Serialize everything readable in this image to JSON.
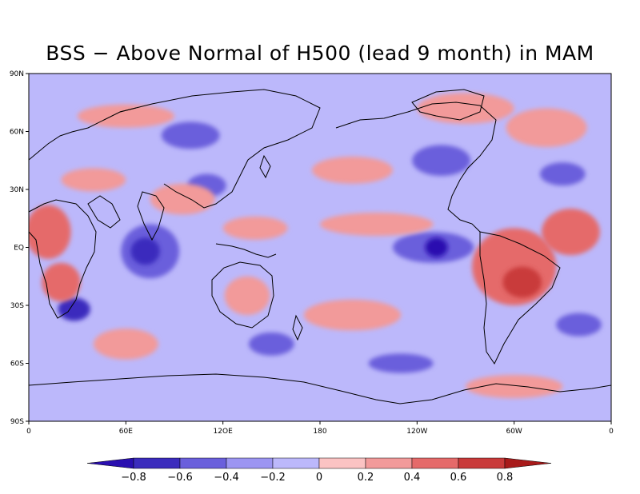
{
  "title": "BSS − Above Normal of H500 (lead 9 month) in MAM",
  "map": {
    "projection": "equirectangular",
    "lon_range": [
      0,
      360
    ],
    "lat_range": [
      -90,
      90
    ],
    "background_level": "-0.2 to 0",
    "lat_ticks": [
      {
        "lat": 90,
        "label": "90N"
      },
      {
        "lat": 60,
        "label": "60N"
      },
      {
        "lat": 30,
        "label": "30N"
      },
      {
        "lat": 0,
        "label": "EQ"
      },
      {
        "lat": -30,
        "label": "30S"
      },
      {
        "lat": -60,
        "label": "60S"
      },
      {
        "lat": -90,
        "label": "90S"
      }
    ],
    "lon_ticks": [
      {
        "lon": 0,
        "label": "0"
      },
      {
        "lon": 60,
        "label": "60E"
      },
      {
        "lon": 120,
        "label": "12OE"
      },
      {
        "lon": 180,
        "label": "180"
      },
      {
        "lon": 240,
        "label": "120W"
      },
      {
        "lon": 300,
        "label": "60W"
      },
      {
        "lon": 360,
        "label": "0"
      }
    ]
  },
  "colorbar": {
    "labels": [
      "−0.8",
      "−0.6",
      "−0.4",
      "−0.2",
      "0",
      "0.2",
      "0.4",
      "0.6",
      "0.8"
    ],
    "colors": [
      "#2a0fb0",
      "#3b2bbd",
      "#6a5fdc",
      "#9c95f2",
      "#bcb8fb",
      "#fbc3c3",
      "#f29a9a",
      "#e56a6a",
      "#c93a3a",
      "#a81a1a"
    ]
  },
  "fields": {
    "positive": [
      {
        "name": "africa-west",
        "lon": 12,
        "lat": 8,
        "rlon": 14,
        "rlat": 14,
        "level": 3
      },
      {
        "name": "africa-south",
        "lon": 20,
        "lat": -18,
        "rlon": 12,
        "rlat": 10,
        "level": 3
      },
      {
        "name": "south-america",
        "lon": 300,
        "lat": -10,
        "rlon": 26,
        "rlat": 20,
        "level": 3
      },
      {
        "name": "amazon-core",
        "lon": 305,
        "lat": -18,
        "rlon": 12,
        "rlat": 8,
        "level": 4
      },
      {
        "name": "atlantic-tropics",
        "lon": 335,
        "lat": 8,
        "rlon": 18,
        "rlat": 12,
        "level": 3
      },
      {
        "name": "north-atlantic",
        "lon": 320,
        "lat": 62,
        "rlon": 25,
        "rlat": 10,
        "level": 2
      },
      {
        "name": "arctic-canada",
        "lon": 270,
        "lat": 72,
        "rlon": 30,
        "rlat": 8,
        "level": 2
      },
      {
        "name": "australia",
        "lon": 135,
        "lat": -25,
        "rlon": 14,
        "rlat": 10,
        "level": 2
      },
      {
        "name": "south-pacific",
        "lon": 200,
        "lat": -35,
        "rlon": 30,
        "rlat": 8,
        "level": 2
      },
      {
        "name": "north-pacific",
        "lon": 200,
        "lat": 40,
        "rlon": 25,
        "rlat": 7,
        "level": 2
      },
      {
        "name": "tropical-pacific-n",
        "lon": 215,
        "lat": 12,
        "rlon": 35,
        "rlat": 6,
        "level": 2
      },
      {
        "name": "southern-ocean-w",
        "lon": 60,
        "lat": -50,
        "rlon": 20,
        "rlat": 8,
        "level": 2
      },
      {
        "name": "antarctic-edge",
        "lon": 300,
        "lat": -72,
        "rlon": 30,
        "rlat": 6,
        "level": 2
      },
      {
        "name": "india-cluster",
        "lon": 95,
        "lat": 25,
        "rlon": 20,
        "rlat": 8,
        "level": 2
      },
      {
        "name": "sea-tropics",
        "lon": 140,
        "lat": 10,
        "rlon": 20,
        "rlat": 6,
        "level": 2
      },
      {
        "name": "eurasia-north",
        "lon": 60,
        "lat": 68,
        "rlon": 30,
        "rlat": 6,
        "level": 2
      },
      {
        "name": "sahara",
        "lon": 40,
        "lat": 35,
        "rlon": 20,
        "rlat": 6,
        "level": 2
      }
    ],
    "negative": [
      {
        "name": "indian-ocean",
        "lon": 75,
        "lat": -2,
        "rlon": 18,
        "rlat": 14,
        "level": 2
      },
      {
        "name": "indian-ocean-core",
        "lon": 72,
        "lat": -2,
        "rlon": 9,
        "rlat": 7,
        "level": 3
      },
      {
        "name": "east-pacific",
        "lon": 250,
        "lat": 0,
        "rlon": 25,
        "rlat": 8,
        "level": 2
      },
      {
        "name": "east-pacific-core",
        "lon": 252,
        "lat": 0,
        "rlon": 7,
        "rlat": 5,
        "level": 4
      },
      {
        "name": "south-africa-tip",
        "lon": 28,
        "lat": -32,
        "rlon": 10,
        "rlat": 6,
        "level": 3
      },
      {
        "name": "siberia",
        "lon": 100,
        "lat": 58,
        "rlon": 18,
        "rlat": 7,
        "level": 2
      },
      {
        "name": "china",
        "lon": 110,
        "lat": 32,
        "rlon": 12,
        "rlat": 6,
        "level": 2
      },
      {
        "name": "north-america",
        "lon": 255,
        "lat": 45,
        "rlon": 18,
        "rlat": 8,
        "level": 2
      },
      {
        "name": "southern-pacific-a",
        "lon": 150,
        "lat": -50,
        "rlon": 14,
        "rlat": 6,
        "level": 2
      },
      {
        "name": "southern-pacific-b",
        "lon": 230,
        "lat": -60,
        "rlon": 20,
        "rlat": 5,
        "level": 2
      },
      {
        "name": "south-atlantic",
        "lon": 340,
        "lat": -40,
        "rlon": 14,
        "rlat": 6,
        "level": 2
      },
      {
        "name": "north-atlantic-s",
        "lon": 330,
        "lat": 38,
        "rlon": 14,
        "rlat": 6,
        "level": 2
      }
    ]
  }
}
